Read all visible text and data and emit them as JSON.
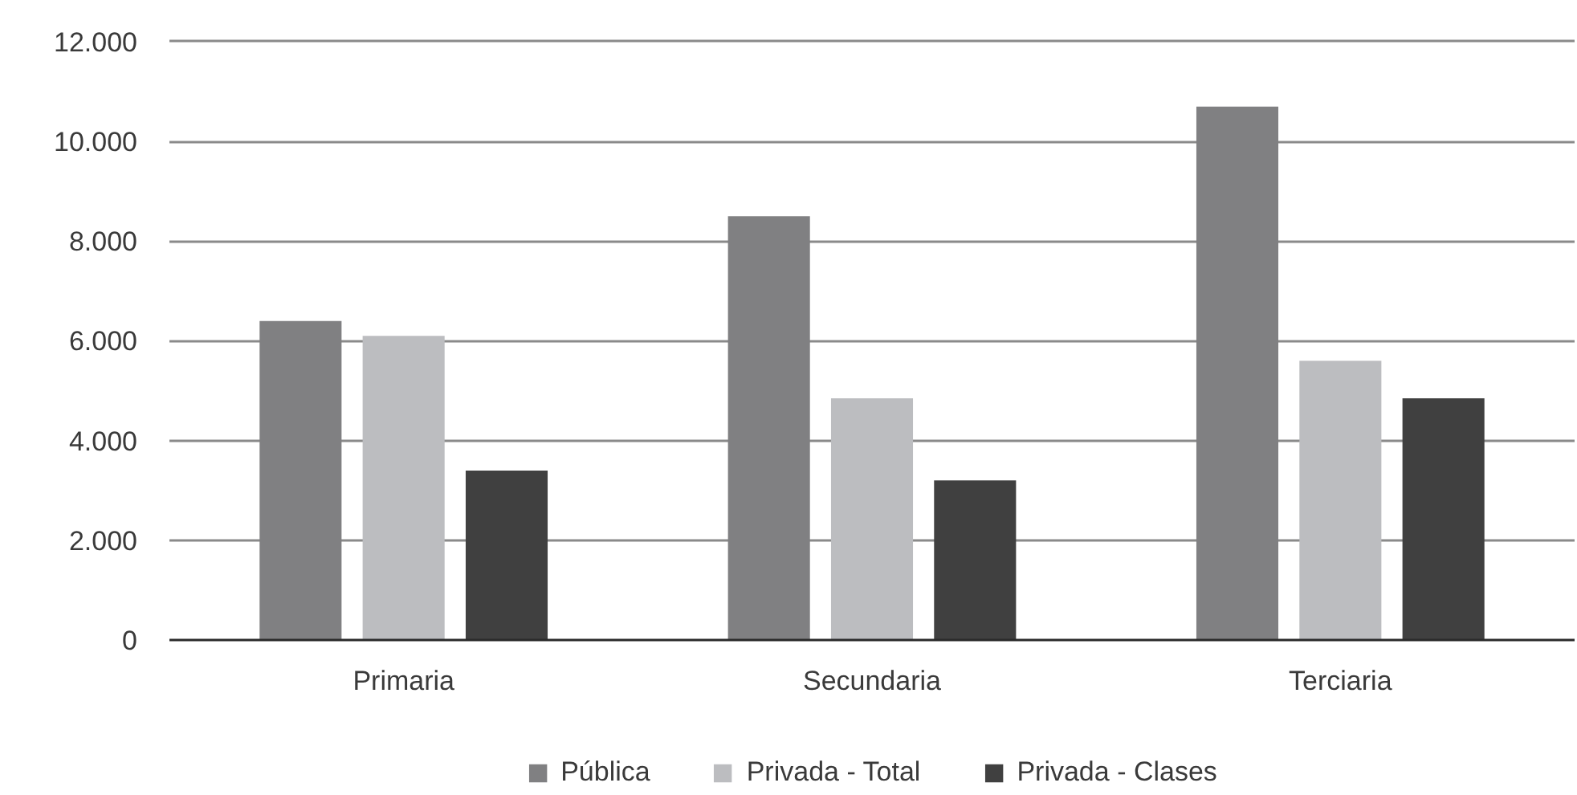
{
  "chart_data": {
    "type": "bar",
    "categories": [
      "Primaria",
      "Secundaria",
      "Terciaria"
    ],
    "series": [
      {
        "name": "Pública",
        "color": "#808082",
        "values": [
          6400,
          8500,
          10700
        ]
      },
      {
        "name": "Privada - Total",
        "color": "#bcbdc0",
        "values": [
          6100,
          4850,
          5600
        ]
      },
      {
        "name": "Privada - Clases",
        "color": "#404040",
        "values": [
          3400,
          3200,
          4850
        ]
      }
    ],
    "ylim": [
      0,
      12000
    ],
    "yticks": [
      0,
      {
        "value": 2000,
        "label": "2.000"
      },
      {
        "value": 4000,
        "label": "4.000"
      },
      {
        "value": 6000,
        "label": "6.000"
      },
      {
        "value": 8000,
        "label": "8.000"
      },
      {
        "value": 10000,
        "label": "10.000"
      },
      {
        "value": 12000,
        "label": "12.000"
      }
    ],
    "grid": "y",
    "legend": "bottom"
  }
}
